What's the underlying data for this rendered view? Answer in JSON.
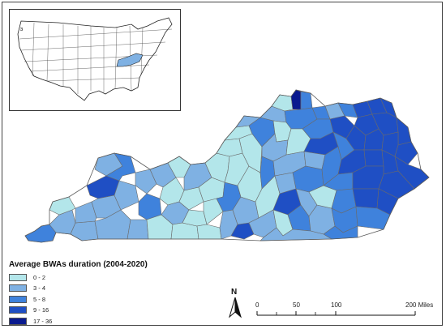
{
  "map": {
    "region": "Kentucky",
    "legend": {
      "title": "Average BWAs duration (2004-2020)",
      "classes": [
        {
          "label": "0 - 2",
          "color": "#b3e6ea"
        },
        {
          "label": "3 - 4",
          "color": "#7fb1e3"
        },
        {
          "label": "5 - 8",
          "color": "#3f82dc"
        },
        {
          "label": "9 - 16",
          "color": "#1f4fc4"
        },
        {
          "label": "17 - 36",
          "color": "#0a1a8f"
        }
      ]
    },
    "north_arrow": {
      "letter": "N"
    },
    "scale_bar": {
      "ticks": [
        "0",
        "50",
        "100",
        "200 Miles"
      ]
    },
    "inset": {
      "description_color": "#7fb1e3"
    }
  }
}
